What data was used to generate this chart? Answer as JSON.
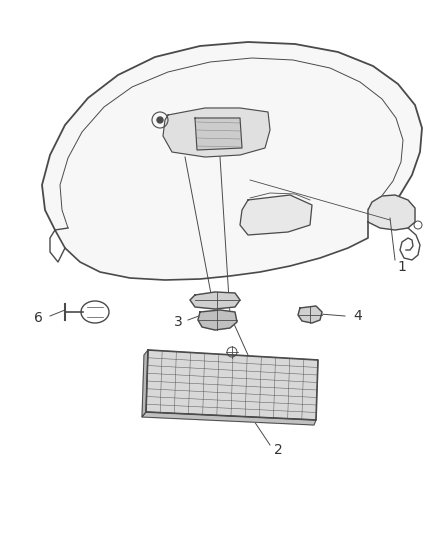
{
  "bg_color": "#ffffff",
  "line_color": "#4a4a4a",
  "fill_color": "#f5f5f5",
  "label_color": "#333333",
  "fig_width": 4.38,
  "fig_height": 5.33,
  "dpi": 100
}
